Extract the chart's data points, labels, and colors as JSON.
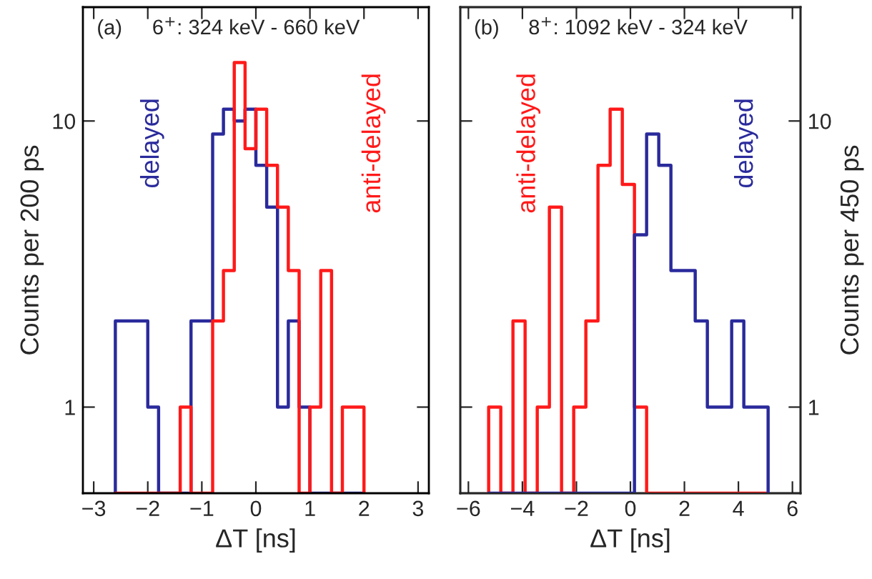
{
  "chart_data": [
    {
      "type": "histogram",
      "annotations": [
        "(a)",
        "6$^{+}$: 324 keV - 660 keV"
      ],
      "xlabel": "ΔT [ns]",
      "ylabel": "Counts per 200 ps",
      "log": true,
      "grid": false,
      "bins": [
        -2.6,
        -2.4,
        -2.2,
        -2.0,
        -1.8,
        -1.6,
        -1.4,
        -1.2,
        -1.0,
        -0.8,
        -0.6,
        -0.4,
        -0.2,
        0.0,
        0.2,
        0.4,
        0.6,
        0.8,
        1.0,
        1.2,
        1.4,
        1.6,
        1.8,
        2.0
      ],
      "series": [
        {
          "name": "delayed",
          "color": "#2a2a9c",
          "values": [
            2,
            2,
            2,
            1,
            null,
            null,
            null,
            2,
            2,
            9,
            11,
            10,
            11,
            7,
            5,
            1,
            2,
            1,
            null,
            null,
            null,
            null,
            null
          ]
        },
        {
          "name": "anti-delayed",
          "color": "#ff1a1a",
          "values": [
            null,
            null,
            null,
            null,
            null,
            null,
            1,
            null,
            null,
            2,
            3,
            16,
            8,
            11,
            7,
            5,
            3,
            null,
            1,
            3,
            null,
            1,
            1
          ]
        }
      ],
      "xlim": [
        -3.2,
        3.2
      ],
      "xticks": [
        {
          "value": -3,
          "label": "−3"
        },
        {
          "value": -2,
          "label": "−2"
        },
        {
          "value": -1,
          "label": "−1"
        },
        0,
        1,
        2,
        3
      ],
      "ylim": [
        0.5,
        25
      ],
      "yticks": [
        1,
        10
      ]
    },
    {
      "type": "histogram",
      "annotations": [
        "(b)",
        "8$^{+}$: 1092 keV - 324 keV"
      ],
      "xlabel": "ΔT [ns]",
      "y2label": "Counts per 450 ps",
      "log": "y2",
      "grid": false,
      "bins": [
        -5.25,
        -4.8,
        -4.35,
        -3.9,
        -3.45,
        -3.0,
        -2.55,
        -2.1,
        -1.65,
        -1.2,
        -0.75,
        -0.3,
        0.15,
        0.6,
        1.05,
        1.5,
        1.95,
        2.4,
        2.85,
        3.3,
        3.75,
        4.2,
        4.65,
        5.1
      ],
      "series": [
        {
          "name": "anti-delayed",
          "color": "#ff1a1a",
          "axis": "y2",
          "values": [
            1,
            null,
            2,
            null,
            1,
            5,
            null,
            1,
            2,
            7,
            11,
            6,
            1,
            null,
            null,
            null,
            null,
            null,
            null,
            null,
            null,
            null,
            null
          ]
        },
        {
          "name": "delayed",
          "color": "#2a2a9c",
          "axis": "y2",
          "values": [
            null,
            null,
            null,
            null,
            null,
            null,
            null,
            null,
            null,
            null,
            null,
            null,
            4,
            9,
            7,
            3,
            3,
            2,
            1,
            1,
            2,
            1,
            1
          ]
        }
      ],
      "xlim": [
        -6.3,
        6.3
      ],
      "xticks": [
        {
          "value": -6,
          "label": "−6"
        },
        {
          "value": -4,
          "label": "−4"
        },
        {
          "value": -2,
          "label": "−2"
        },
        0,
        2,
        4,
        6
      ],
      "y2lim": [
        0.5,
        25
      ],
      "y2ticks": [
        1,
        10
      ]
    }
  ]
}
